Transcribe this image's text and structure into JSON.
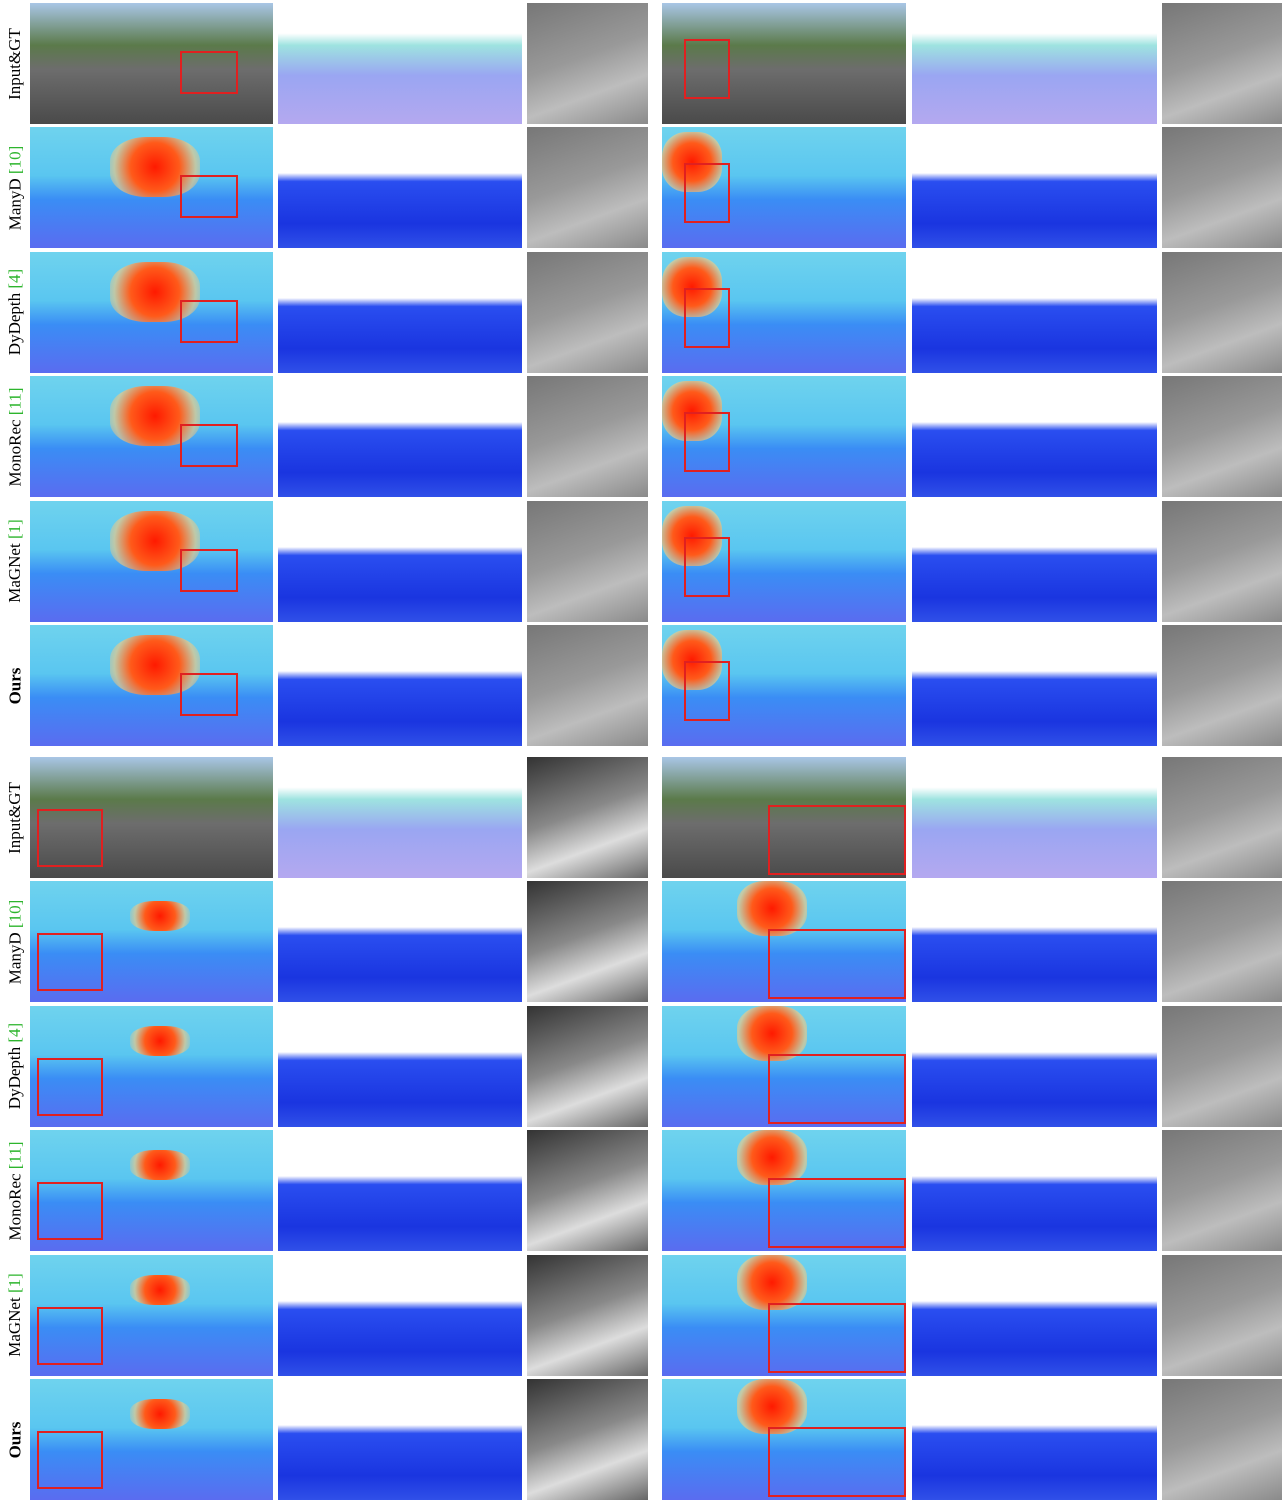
{
  "blocks": [
    {
      "rows": [
        {
          "label": "Input&GT"
        },
        {
          "label": "ManyD",
          "citation": "[10]"
        },
        {
          "label": "DyDepth",
          "citation": "[4]"
        },
        {
          "label": "MonoRec",
          "citation": "[11]"
        },
        {
          "label": "MaGNet",
          "citation": "[1]"
        },
        {
          "label": "Ours"
        }
      ]
    },
    {
      "rows": [
        {
          "label": "Input&GT"
        },
        {
          "label": "ManyD",
          "citation": "[10]"
        },
        {
          "label": "DyDepth",
          "citation": "[4]"
        },
        {
          "label": "MonoRec",
          "citation": "[11]"
        },
        {
          "label": "MaGNet",
          "citation": "[1]"
        },
        {
          "label": "Ours"
        }
      ]
    }
  ]
}
